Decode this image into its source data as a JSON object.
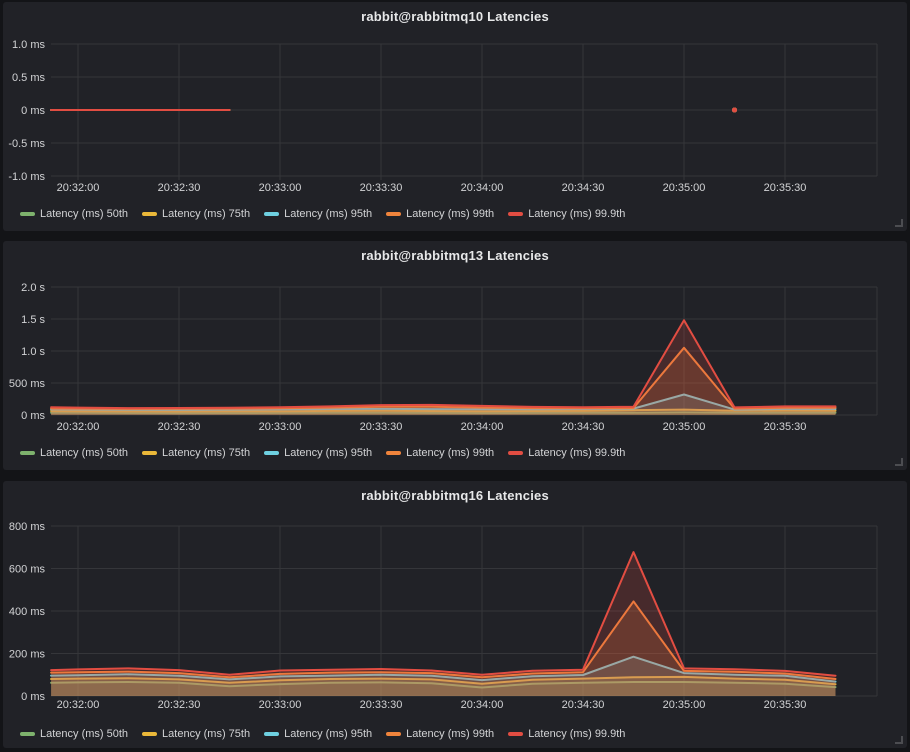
{
  "page": {
    "background": "#131417",
    "panel_background": "#212227",
    "grid_color": "#35363a",
    "tick_text_color": "#d2d3d5",
    "title_color": "#e7e8e9"
  },
  "series_colors": {
    "p50": "#7EB26D",
    "p75": "#EAB839",
    "p95": "#6ED0E0",
    "p99": "#EF843C",
    "p999": "#E24D42"
  },
  "chart_data": [
    {
      "type": "line",
      "title": "rabbit@rabbitmq10 Latencies",
      "unit": "ms",
      "grid": true,
      "legend_position": "bottom",
      "xlabel": "",
      "ylabel": "",
      "x_ticks": [
        {
          "label": "20:32:00",
          "t": 0
        },
        {
          "label": "20:32:30",
          "t": 30
        },
        {
          "label": "20:33:00",
          "t": 60
        },
        {
          "label": "20:33:30",
          "t": 90
        },
        {
          "label": "20:34:00",
          "t": 120
        },
        {
          "label": "20:34:30",
          "t": 150
        },
        {
          "label": "20:35:00",
          "t": 180
        },
        {
          "label": "20:35:30",
          "t": 210
        }
      ],
      "x_range_seconds": [
        -8,
        237
      ],
      "y_axis": {
        "min": -1,
        "max": 1,
        "ticks": [
          {
            "label": "1.0 ms",
            "value": 1
          },
          {
            "label": "0.5 ms",
            "value": 0.5
          },
          {
            "label": "0 ms",
            "value": 0
          },
          {
            "label": "-0.5 ms",
            "value": -0.5
          },
          {
            "label": "-1.0 ms",
            "value": -1
          }
        ]
      },
      "series": [
        {
          "name": "Latency (ms) 50th",
          "color": "#7EB26D",
          "segments": [
            [
              [
                -8,
                0
              ],
              [
                45,
                0
              ]
            ],
            [
              [
                195,
                0
              ]
            ]
          ]
        },
        {
          "name": "Latency (ms) 75th",
          "color": "#EAB839",
          "segments": [
            [
              [
                -8,
                0
              ],
              [
                45,
                0
              ]
            ],
            [
              [
                195,
                0
              ]
            ]
          ]
        },
        {
          "name": "Latency (ms) 95th",
          "color": "#6ED0E0",
          "segments": [
            [
              [
                -8,
                0
              ],
              [
                45,
                0
              ]
            ],
            [
              [
                195,
                0
              ]
            ]
          ]
        },
        {
          "name": "Latency (ms) 99th",
          "color": "#EF843C",
          "segments": [
            [
              [
                -8,
                0
              ],
              [
                45,
                0
              ]
            ],
            [
              [
                195,
                0
              ]
            ]
          ]
        },
        {
          "name": "Latency (ms) 99.9th",
          "color": "#E24D42",
          "segments": [
            [
              [
                -8,
                0
              ],
              [
                45,
                0
              ]
            ],
            [
              [
                195,
                0
              ]
            ]
          ]
        }
      ]
    },
    {
      "type": "line",
      "title": "rabbit@rabbitmq13 Latencies",
      "unit": "ms",
      "grid": true,
      "legend_position": "bottom",
      "xlabel": "",
      "ylabel": "",
      "x_ticks": [
        {
          "label": "20:32:00",
          "t": 0
        },
        {
          "label": "20:32:30",
          "t": 30
        },
        {
          "label": "20:33:00",
          "t": 60
        },
        {
          "label": "20:33:30",
          "t": 90
        },
        {
          "label": "20:34:00",
          "t": 120
        },
        {
          "label": "20:34:30",
          "t": 150
        },
        {
          "label": "20:35:00",
          "t": 180
        },
        {
          "label": "20:35:30",
          "t": 210
        }
      ],
      "x_range_seconds": [
        -8,
        237
      ],
      "y_axis": {
        "min": 0,
        "max": 2000,
        "ticks": [
          {
            "label": "2.0 s",
            "value": 2000
          },
          {
            "label": "1.5 s",
            "value": 1500
          },
          {
            "label": "1.0 s",
            "value": 1000
          },
          {
            "label": "500 ms",
            "value": 500
          },
          {
            "label": "0 ms",
            "value": 0
          }
        ]
      },
      "x_values": [
        -8,
        0,
        15,
        30,
        45,
        60,
        75,
        90,
        105,
        120,
        135,
        150,
        165,
        180,
        195,
        210,
        225
      ],
      "series": [
        {
          "name": "Latency (ms) 50th",
          "color": "#7EB26D",
          "values": [
            34,
            34,
            32,
            30,
            31,
            33,
            35,
            35,
            33,
            32,
            33,
            34,
            36,
            40,
            34,
            35,
            34
          ]
        },
        {
          "name": "Latency (ms) 75th",
          "color": "#EAB839",
          "values": [
            62,
            60,
            57,
            55,
            58,
            60,
            64,
            66,
            63,
            60,
            62,
            64,
            75,
            85,
            66,
            68,
            66
          ]
        },
        {
          "name": "Latency (ms) 95th",
          "color": "#6ED0E0",
          "values": [
            88,
            86,
            82,
            80,
            84,
            88,
            94,
            96,
            92,
            90,
            91,
            94,
            100,
            320,
            85,
            95,
            94
          ]
        },
        {
          "name": "Latency (ms) 99th",
          "color": "#EF843C",
          "values": [
            102,
            100,
            96,
            97,
            100,
            105,
            115,
            128,
            130,
            116,
            108,
            106,
            110,
            1050,
            100,
            112,
            112
          ]
        },
        {
          "name": "Latency (ms) 99.9th",
          "color": "#E24D42",
          "values": [
            122,
            116,
            108,
            110,
            114,
            120,
            135,
            155,
            158,
            142,
            126,
            122,
            128,
            1480,
            118,
            135,
            135
          ]
        }
      ]
    },
    {
      "type": "line",
      "title": "rabbit@rabbitmq16 Latencies",
      "unit": "ms",
      "grid": true,
      "legend_position": "bottom",
      "xlabel": "",
      "ylabel": "",
      "x_ticks": [
        {
          "label": "20:32:00",
          "t": 0
        },
        {
          "label": "20:32:30",
          "t": 30
        },
        {
          "label": "20:33:00",
          "t": 60
        },
        {
          "label": "20:33:30",
          "t": 90
        },
        {
          "label": "20:34:00",
          "t": 120
        },
        {
          "label": "20:34:30",
          "t": 150
        },
        {
          "label": "20:35:00",
          "t": 180
        },
        {
          "label": "20:35:30",
          "t": 210
        }
      ],
      "x_range_seconds": [
        -8,
        237
      ],
      "y_axis": {
        "min": 0,
        "max": 800,
        "ticks": [
          {
            "label": "800 ms",
            "value": 800
          },
          {
            "label": "600 ms",
            "value": 600
          },
          {
            "label": "400 ms",
            "value": 400
          },
          {
            "label": "200 ms",
            "value": 200
          },
          {
            "label": "0 ms",
            "value": 0
          }
        ]
      },
      "x_values": [
        -8,
        0,
        15,
        30,
        45,
        60,
        75,
        90,
        105,
        120,
        135,
        150,
        165,
        180,
        195,
        210,
        225
      ],
      "series": [
        {
          "name": "Latency (ms) 50th",
          "color": "#7EB26D",
          "values": [
            62,
            64,
            66,
            62,
            46,
            56,
            62,
            64,
            60,
            40,
            58,
            62,
            66,
            66,
            62,
            58,
            42
          ]
        },
        {
          "name": "Latency (ms) 75th",
          "color": "#EAB839",
          "values": [
            80,
            82,
            84,
            78,
            62,
            74,
            80,
            82,
            78,
            58,
            76,
            82,
            88,
            90,
            82,
            76,
            55
          ]
        },
        {
          "name": "Latency (ms) 95th",
          "color": "#6ED0E0",
          "values": [
            96,
            98,
            102,
            95,
            78,
            92,
            96,
            100,
            95,
            75,
            93,
            99,
            185,
            108,
            100,
            95,
            68
          ]
        },
        {
          "name": "Latency (ms) 99th",
          "color": "#EF843C",
          "values": [
            110,
            112,
            115,
            108,
            88,
            104,
            110,
            112,
            108,
            88,
            106,
            112,
            445,
            118,
            114,
            106,
            80
          ]
        },
        {
          "name": "Latency (ms) 99.9th",
          "color": "#E24D42",
          "values": [
            122,
            125,
            130,
            122,
            100,
            120,
            124,
            127,
            120,
            100,
            119,
            124,
            677,
            130,
            126,
            118,
            95
          ]
        }
      ]
    }
  ]
}
